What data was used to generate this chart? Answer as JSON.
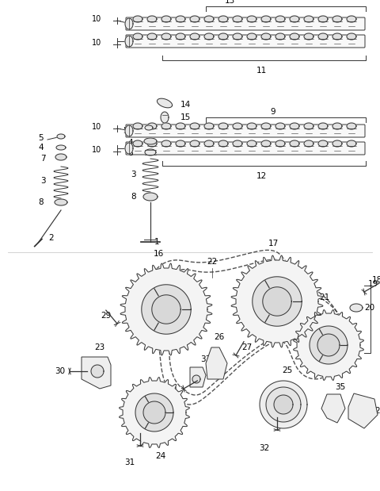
{
  "bg_color": "#ffffff",
  "line_color": "#333333",
  "label_color": "#000000",
  "fig_width": 4.8,
  "fig_height": 6.19,
  "dpi": 100
}
